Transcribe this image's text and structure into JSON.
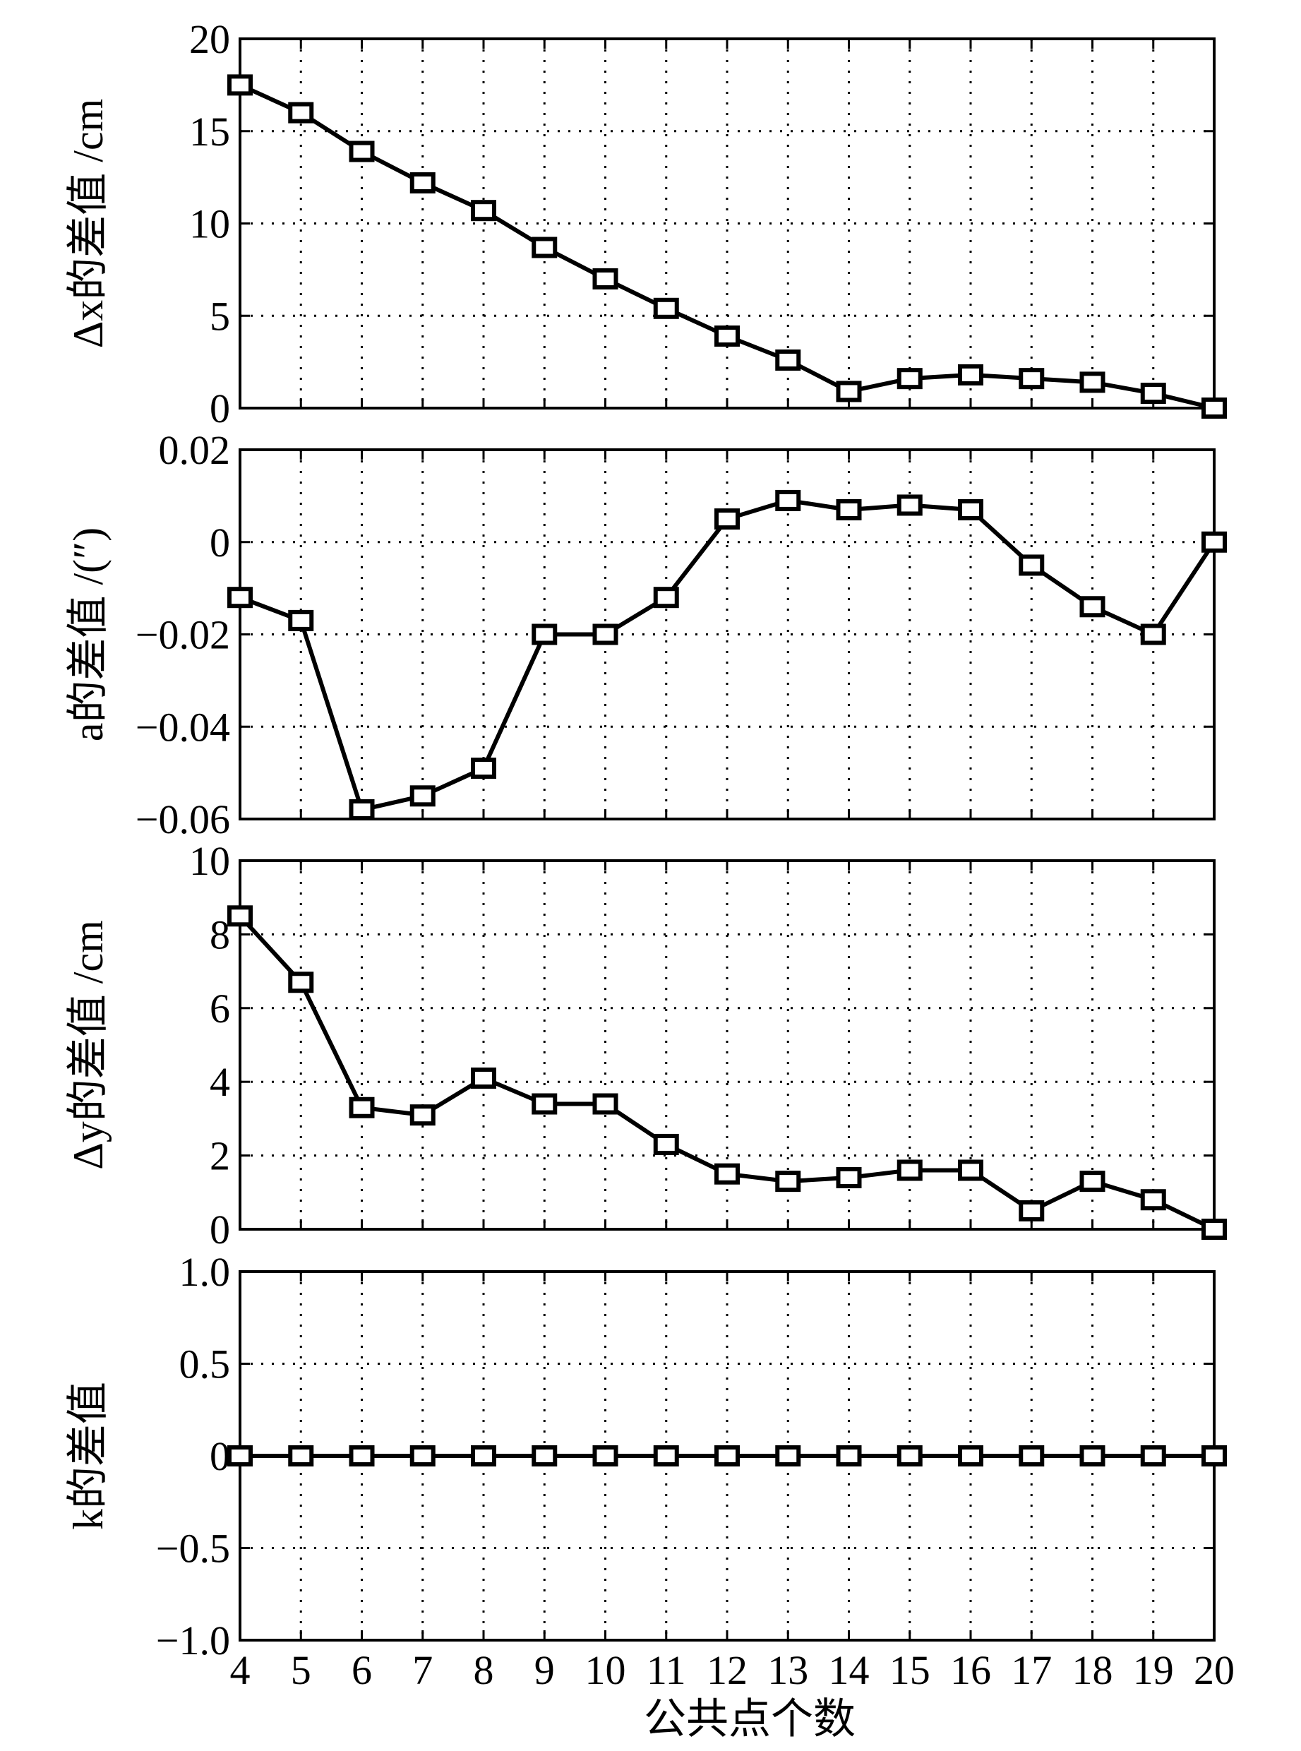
{
  "chart_data": [
    {
      "type": "line",
      "ylabel": "Δx的差值 /cm",
      "xlabel": "",
      "ylim": [
        0,
        20
      ],
      "yticks": [
        "0",
        "5",
        "10",
        "15",
        "20"
      ],
      "ytick_values": [
        0,
        5,
        10,
        15,
        20
      ],
      "x": [
        4,
        5,
        6,
        7,
        8,
        9,
        10,
        11,
        12,
        13,
        14,
        15,
        16,
        17,
        18,
        19,
        20
      ],
      "series": [
        {
          "values": [
            17.5,
            16.0,
            13.9,
            12.2,
            10.7,
            8.7,
            7.0,
            5.4,
            3.9,
            2.6,
            0.9,
            1.6,
            1.8,
            1.6,
            1.4,
            0.8,
            0.0
          ]
        }
      ],
      "marker": "square",
      "grid": true
    },
    {
      "type": "line",
      "ylabel": "a的差值 /(″)",
      "xlabel": "",
      "ylim": [
        -0.06,
        0.02
      ],
      "yticks": [
        "−0.06",
        "−0.04",
        "−0.02",
        "0",
        "0.02"
      ],
      "ytick_values": [
        -0.06,
        -0.04,
        -0.02,
        0,
        0.02
      ],
      "x": [
        4,
        5,
        6,
        7,
        8,
        9,
        10,
        11,
        12,
        13,
        14,
        15,
        16,
        17,
        18,
        19,
        20
      ],
      "series": [
        {
          "values": [
            -0.012,
            -0.017,
            -0.058,
            -0.055,
            -0.049,
            -0.02,
            -0.02,
            -0.012,
            0.005,
            0.009,
            0.007,
            0.008,
            0.007,
            -0.005,
            -0.014,
            -0.02,
            0.0
          ]
        }
      ],
      "marker": "square",
      "grid": true
    },
    {
      "type": "line",
      "ylabel": "Δy的差值 /cm",
      "xlabel": "",
      "ylim": [
        0,
        10
      ],
      "yticks": [
        "0",
        "2",
        "4",
        "6",
        "8",
        "10"
      ],
      "ytick_values": [
        0,
        2,
        4,
        6,
        8,
        10
      ],
      "x": [
        4,
        5,
        6,
        7,
        8,
        9,
        10,
        11,
        12,
        13,
        14,
        15,
        16,
        17,
        18,
        19,
        20
      ],
      "series": [
        {
          "values": [
            8.5,
            6.7,
            3.3,
            3.1,
            4.1,
            3.4,
            3.4,
            2.3,
            1.5,
            1.3,
            1.4,
            1.6,
            1.6,
            0.5,
            1.3,
            0.8,
            0.0
          ]
        }
      ],
      "marker": "square",
      "grid": true
    },
    {
      "type": "line",
      "ylabel": "k的差值",
      "xlabel": "公共点个数",
      "ylim": [
        -1.0,
        1.0
      ],
      "yticks": [
        "−1.0",
        "−0.5",
        "0",
        "0.5",
        "1.0"
      ],
      "ytick_values": [
        -1.0,
        -0.5,
        0,
        0.5,
        1.0
      ],
      "x": [
        4,
        5,
        6,
        7,
        8,
        9,
        10,
        11,
        12,
        13,
        14,
        15,
        16,
        17,
        18,
        19,
        20
      ],
      "xticks": [
        "4",
        "5",
        "6",
        "7",
        "8",
        "9",
        "10",
        "11",
        "12",
        "13",
        "14",
        "15",
        "16",
        "17",
        "18",
        "19",
        "20"
      ],
      "series": [
        {
          "values": [
            0,
            0,
            0,
            0,
            0,
            0,
            0,
            0,
            0,
            0,
            0,
            0,
            0,
            0,
            0,
            0,
            0
          ]
        }
      ],
      "marker": "square",
      "grid": true
    }
  ],
  "colors": {
    "line": "#000000",
    "grid": "#000000",
    "background": "#ffffff"
  }
}
